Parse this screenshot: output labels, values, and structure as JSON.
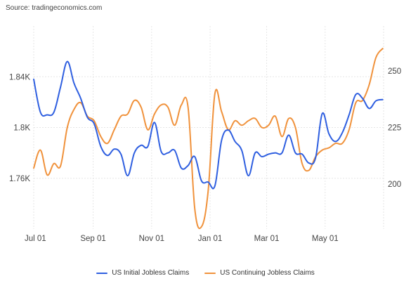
{
  "source_text": "Source: tradingeconomics.com",
  "chart_data": {
    "type": "line",
    "title": "",
    "xlabel": "",
    "x_ticks": [
      "Jul 01",
      "Sep 01",
      "Nov 01",
      "Jan 01",
      "Mar 01",
      "May 01"
    ],
    "x_tick_days": [
      0,
      62,
      123,
      184,
      243,
      304
    ],
    "x_range_days": [
      0,
      365
    ],
    "left_axis": {
      "ylim": [
        1720,
        1880
      ],
      "ticks": [
        1760,
        1800,
        1840
      ],
      "tick_labels": [
        "1.76K",
        "1.8K",
        "1.84K"
      ]
    },
    "right_axis": {
      "ylim": [
        180,
        270
      ],
      "ticks": [
        200,
        225,
        250
      ],
      "tick_labels": [
        "200",
        "225",
        "250"
      ]
    },
    "grid": true,
    "legend_position": "bottom-center",
    "series": [
      {
        "name": "US Initial Jobless Claims",
        "color": "#2f5fe0",
        "axis": "left",
        "x": [
          0,
          7,
          14,
          21,
          28,
          35,
          42,
          49,
          56,
          63,
          70,
          77,
          84,
          91,
          98,
          105,
          112,
          119,
          126,
          133,
          140,
          147,
          154,
          161,
          168,
          175,
          182,
          189,
          196,
          203,
          210,
          217,
          224,
          231,
          238,
          245,
          252,
          259,
          266,
          273,
          280,
          287,
          294,
          301,
          308,
          315,
          322,
          329,
          336,
          343,
          350,
          357,
          364
        ],
        "y": [
          1838,
          1812,
          1810,
          1812,
          1832,
          1852,
          1835,
          1823,
          1808,
          1803,
          1785,
          1778,
          1783,
          1779,
          1762,
          1780,
          1786,
          1785,
          1804,
          1781,
          1780,
          1782,
          1768,
          1770,
          1777,
          1758,
          1757,
          1754,
          1790,
          1798,
          1789,
          1782,
          1762,
          1780,
          1777,
          1779,
          1780,
          1780,
          1794,
          1780,
          1779,
          1772,
          1776,
          1811,
          1795,
          1789,
          1796,
          1810,
          1826,
          1823,
          1815,
          1821,
          1822
        ]
      },
      {
        "name": "US Continuing Jobless Claims",
        "color": "#f0923c",
        "axis": "right",
        "x": [
          0,
          7,
          14,
          21,
          28,
          35,
          42,
          49,
          56,
          63,
          70,
          77,
          84,
          91,
          98,
          105,
          112,
          119,
          126,
          133,
          140,
          147,
          154,
          161,
          168,
          175,
          182,
          189,
          196,
          203,
          210,
          217,
          224,
          231,
          238,
          245,
          252,
          259,
          266,
          273,
          280,
          287,
          294,
          301,
          308,
          315,
          322,
          329,
          336,
          343,
          350,
          357,
          364
        ],
        "y": [
          207,
          215,
          204,
          209,
          208,
          225,
          233,
          236,
          230,
          228,
          221,
          218,
          224,
          230,
          231,
          237,
          234,
          224,
          231,
          235,
          234,
          226,
          235,
          234,
          189,
          181,
          197,
          240,
          232,
          224,
          228,
          226,
          228,
          229,
          225,
          226,
          230,
          221,
          229,
          225,
          209,
          206,
          212,
          215,
          216,
          218,
          218,
          224,
          236,
          237,
          244,
          256,
          260
        ]
      }
    ]
  }
}
